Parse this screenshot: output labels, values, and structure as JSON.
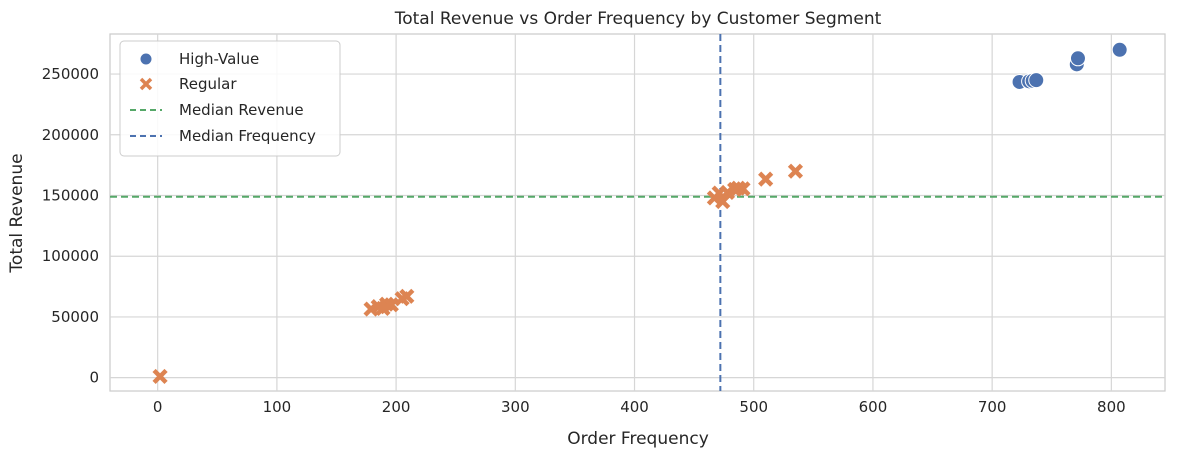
{
  "chart_data": {
    "type": "scatter",
    "title": "Total Revenue vs Order Frequency by Customer Segment",
    "xlabel": "Order Frequency",
    "ylabel": "Total Revenue",
    "xlim": [
      -40,
      845
    ],
    "ylim": [
      -11000,
      283000
    ],
    "x_ticks": [
      0,
      100,
      200,
      300,
      400,
      500,
      600,
      700,
      800
    ],
    "y_ticks": [
      0,
      50000,
      100000,
      150000,
      200000,
      250000
    ],
    "grid": true,
    "legend_position": "top-left",
    "series": [
      {
        "name": "High-Value",
        "marker": "circle",
        "color": "#4c72b0",
        "points": [
          {
            "x": 723,
            "y": 243500
          },
          {
            "x": 731,
            "y": 244000
          },
          {
            "x": 734,
            "y": 244500
          },
          {
            "x": 737,
            "y": 245000
          },
          {
            "x": 771,
            "y": 258000
          },
          {
            "x": 772,
            "y": 263000
          },
          {
            "x": 807,
            "y": 270000
          }
        ]
      },
      {
        "name": "Regular",
        "marker": "x",
        "color": "#dd8452",
        "points": [
          {
            "x": 2,
            "y": 1000
          },
          {
            "x": 179,
            "y": 56500
          },
          {
            "x": 185,
            "y": 58500
          },
          {
            "x": 189,
            "y": 57000
          },
          {
            "x": 192,
            "y": 60500
          },
          {
            "x": 196,
            "y": 60000
          },
          {
            "x": 205,
            "y": 65000
          },
          {
            "x": 209,
            "y": 67000
          },
          {
            "x": 467,
            "y": 148000
          },
          {
            "x": 471,
            "y": 152000
          },
          {
            "x": 474,
            "y": 145000
          },
          {
            "x": 478,
            "y": 152500
          },
          {
            "x": 484,
            "y": 155000
          },
          {
            "x": 487,
            "y": 156000
          },
          {
            "x": 491,
            "y": 155500
          },
          {
            "x": 510,
            "y": 163500
          },
          {
            "x": 535,
            "y": 170000
          }
        ]
      }
    ],
    "reference_lines": [
      {
        "name": "Median Revenue",
        "orientation": "horizontal",
        "value": 149000,
        "color": "#55a868",
        "style": "dashed"
      },
      {
        "name": "Median Frequency",
        "orientation": "vertical",
        "value": 472,
        "color": "#4c72b0",
        "style": "dashed"
      }
    ]
  }
}
